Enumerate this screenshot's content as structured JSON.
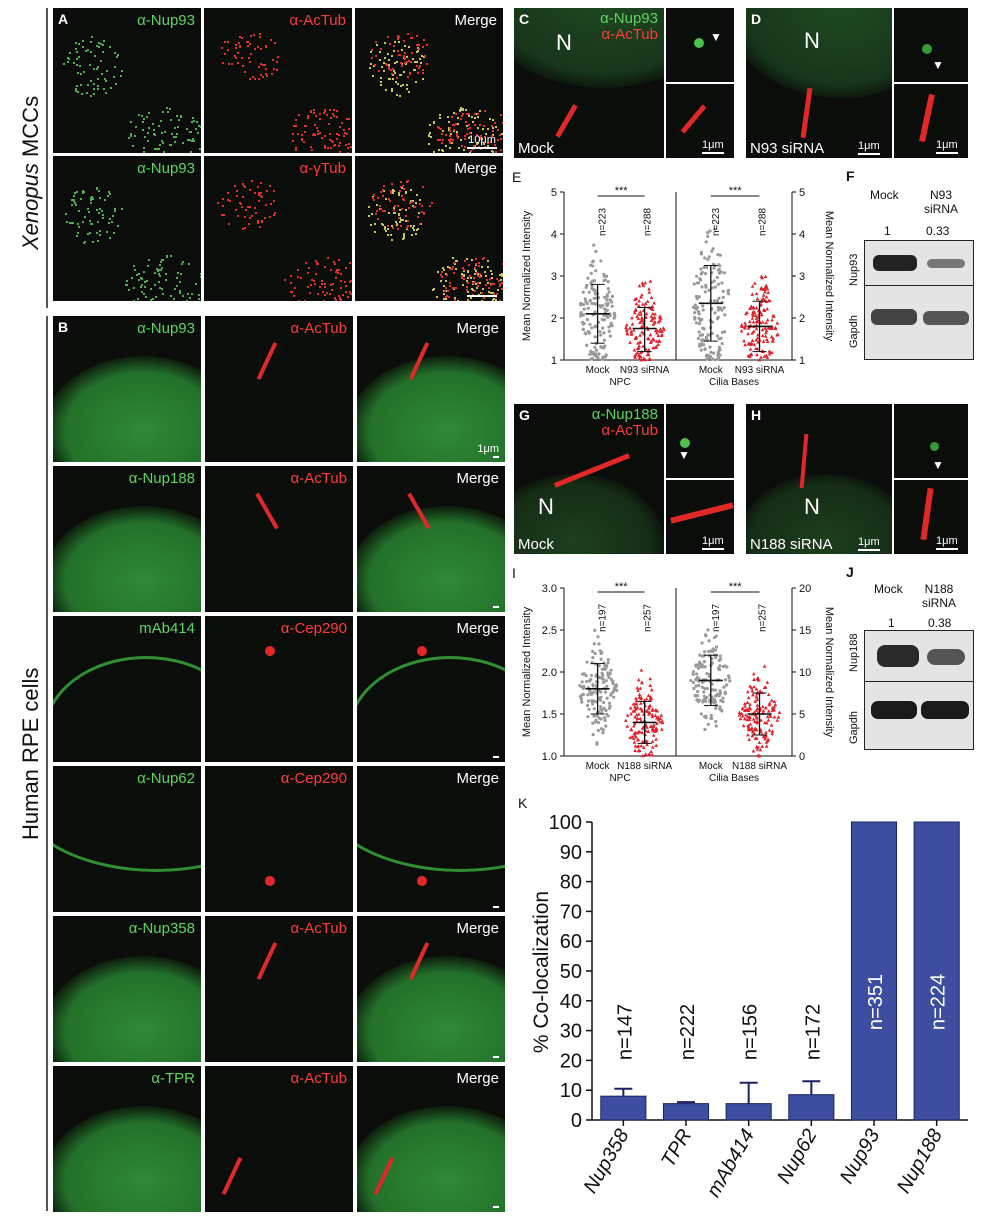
{
  "side_labels": {
    "top_italic": "Xenopus",
    "top_rest": " MCCs",
    "bottom": "Human RPE cells"
  },
  "panelA": {
    "letter": "A",
    "rows": [
      {
        "green": "α-Nup93",
        "red": "α-AcTub",
        "merge": "Merge",
        "scale": "10μm"
      },
      {
        "green": "α-Nup93",
        "red": "α-γTub",
        "merge": "Merge",
        "scale": ""
      }
    ]
  },
  "panelB": {
    "letter": "B",
    "rows": [
      {
        "green": "α-Nup93",
        "red": "α-AcTub",
        "merge": "Merge",
        "scale": "1μm"
      },
      {
        "green": "α-Nup188",
        "red": "α-AcTub",
        "merge": "Merge",
        "scale": ""
      },
      {
        "green": "mAb414",
        "red": "α-Cep290",
        "merge": "Merge",
        "scale": ""
      },
      {
        "green": "α-Nup62",
        "red": "α-Cep290",
        "merge": "Merge",
        "scale": ""
      },
      {
        "green": "α-Nup358",
        "red": "α-AcTub",
        "merge": "Merge",
        "scale": ""
      },
      {
        "green": "α-TPR",
        "red": "α-AcTub",
        "merge": "Merge",
        "scale": ""
      }
    ]
  },
  "panelC": {
    "letter": "C",
    "green": "α-Nup93",
    "red": "α-AcTub",
    "nucleus": "N",
    "condition": "Mock",
    "scale": "1μm"
  },
  "panelD": {
    "letter": "D",
    "nucleus": "N",
    "condition": "N93 siRNA",
    "scale": "1μm"
  },
  "panelG": {
    "letter": "G",
    "green": "α-Nup188",
    "red": "α-AcTub",
    "nucleus": "N",
    "condition": "Mock",
    "scale": "1μm"
  },
  "panelH": {
    "letter": "H",
    "nucleus": "N",
    "condition": "N188 siRNA",
    "scale": "1μm"
  },
  "panelF": {
    "letter": "F",
    "lanes": [
      "Mock",
      "N93"
    ],
    "lane2_line2": "siRNA",
    "ratios": [
      "1",
      "0.33"
    ],
    "bands": [
      "Nup93",
      "Gapdh"
    ]
  },
  "panelJ": {
    "letter": "J",
    "lanes": [
      "Mock",
      "N188"
    ],
    "lane2_line2": "siRNA",
    "ratios": [
      "1",
      "0.38"
    ],
    "bands": [
      "Nup188",
      "Gapdh"
    ]
  },
  "panelE": {
    "letter": "E",
    "ylabel_left": "Mean Normalized Intensity",
    "ylabel_right": "Mean Normalized Intensity",
    "yticks": [
      "1",
      "2",
      "3",
      "4",
      "5"
    ],
    "groups": [
      {
        "caption": "NPC",
        "cats": [
          "Mock",
          "N93 siRNA"
        ],
        "n": [
          "n=223",
          "n=288"
        ],
        "means": [
          2.1,
          1.75
        ],
        "sd_low": [
          1.4,
          1.2
        ],
        "sd_high": [
          2.8,
          2.25
        ],
        "sig": "***"
      },
      {
        "caption": "Cilia Bases",
        "cats": [
          "Mock",
          "N93 siRNA"
        ],
        "n": [
          "n=223",
          "n=288"
        ],
        "means": [
          2.35,
          1.8
        ],
        "sd_low": [
          1.45,
          1.2
        ],
        "sd_high": [
          3.25,
          2.4
        ],
        "sig": "***"
      }
    ]
  },
  "panelI": {
    "letter": "I",
    "ylabel_left": "Mean Normalized Intensity",
    "ylabel_right": "Mean Normalized Intensity",
    "yticks_left": [
      "1.0",
      "1.5",
      "2.0",
      "2.5",
      "3.0"
    ],
    "yticks_right": [
      "0",
      "5",
      "10",
      "15",
      "20"
    ],
    "groups": [
      {
        "caption": "NPC",
        "cats": [
          "Mock",
          "N188 siRNA"
        ],
        "n": [
          "n=197",
          "n=257"
        ],
        "means": [
          1.8,
          1.4
        ],
        "sd_low": [
          1.5,
          1.15
        ],
        "sd_high": [
          2.1,
          1.65
        ],
        "sig": "***"
      },
      {
        "caption": "Cilia Bases",
        "cats": [
          "Mock",
          "N188 siRNA"
        ],
        "n": [
          "n=197",
          "n=257"
        ],
        "means": [
          9,
          5
        ],
        "sd_low": [
          6,
          2.5
        ],
        "sd_high": [
          12,
          7.5
        ],
        "sig": "***"
      }
    ]
  },
  "chart_data": {
    "type": "bar",
    "letter": "K",
    "title": "",
    "ylabel": "% Co-localization",
    "categories": [
      "Nup358",
      "TPR",
      "mAb414",
      "Nup62",
      "Nup93",
      "Nup188"
    ],
    "values": [
      8,
      5.5,
      5.5,
      8.5,
      100,
      100
    ],
    "errors": [
      2.5,
      0.5,
      7,
      4.5,
      0,
      0
    ],
    "labels": [
      "n=147",
      "n=222",
      "n=156",
      "n=172",
      "n=351",
      "n=224"
    ],
    "yticks": [
      "0",
      "10",
      "20",
      "30",
      "40",
      "50",
      "60",
      "70",
      "80",
      "90",
      "100"
    ],
    "ylim": [
      0,
      100
    ],
    "bar_color": "#3d4ea0"
  }
}
